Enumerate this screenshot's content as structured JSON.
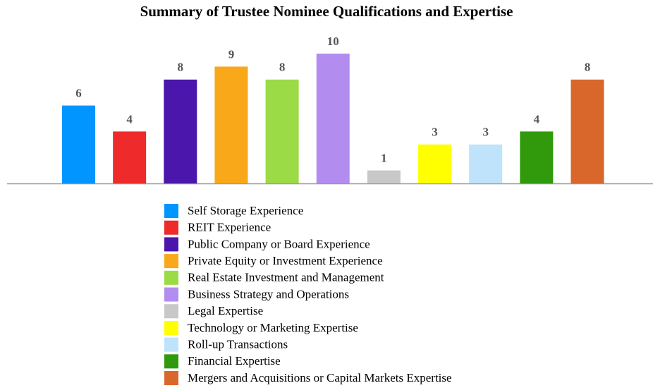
{
  "chart_data": {
    "type": "bar",
    "title": "Summary of Trustee Nominee Qualifications and Expertise",
    "categories": [
      "Self Storage Experience",
      "REIT Experience",
      "Public Company or Board Experience",
      "Private Equity or Investment Experience",
      "Real Estate Investment and Management",
      "Business Strategy and Operations",
      "Legal Expertise",
      "Technology or Marketing Expertise",
      "Roll-up Transactions",
      "Financial Expertise",
      "Mergers and Acquisitions or Capital Markets Expertise"
    ],
    "values": [
      6,
      4,
      8,
      9,
      8,
      10,
      1,
      3,
      3,
      4,
      8
    ],
    "colors": [
      "#0095ff",
      "#ee2a2a",
      "#4b16ab",
      "#f9a81a",
      "#9bdb46",
      "#b38cf0",
      "#c8c8c8",
      "#ffff00",
      "#bfe3fb",
      "#309a0c",
      "#d9672c"
    ],
    "legend": "bottom"
  }
}
